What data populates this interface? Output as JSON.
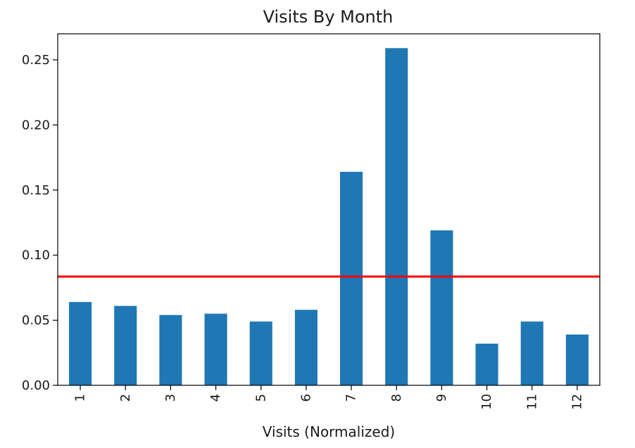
{
  "chart_data": {
    "type": "bar",
    "title": "Visits By Month",
    "xlabel": "Visits (Normalized)",
    "ylabel": "",
    "categories": [
      "1",
      "2",
      "3",
      "4",
      "5",
      "6",
      "7",
      "8",
      "9",
      "10",
      "11",
      "12"
    ],
    "values": [
      0.064,
      0.061,
      0.054,
      0.055,
      0.049,
      0.058,
      0.164,
      0.259,
      0.119,
      0.032,
      0.049,
      0.039
    ],
    "ylim": [
      0,
      0.27
    ],
    "yticks": [
      "0.00",
      "0.05",
      "0.10",
      "0.15",
      "0.20",
      "0.25"
    ],
    "reference_line": {
      "y": 0.0835,
      "color": "#ff0000"
    },
    "bar_color": "#1f77b4",
    "grid": false,
    "x_tick_rotation": "vertical"
  }
}
